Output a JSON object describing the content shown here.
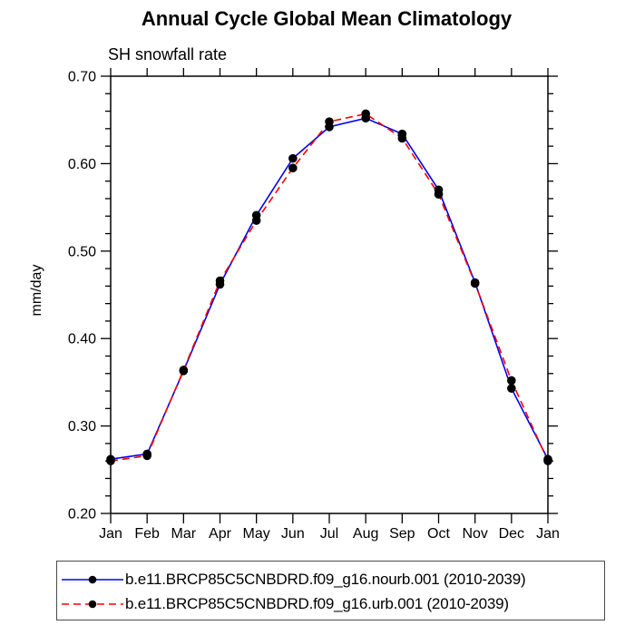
{
  "title": "Annual Cycle Global Mean Climatology",
  "subtitle": "SH snowfall rate",
  "ylabel": "mm/day",
  "axis_color": "#000000",
  "background_color": "#ffffff",
  "chart_data": {
    "type": "line",
    "title": "Annual Cycle Global Mean Climatology",
    "subtitle": "SH snowfall rate",
    "xlabel": "",
    "ylabel": "mm/day",
    "categories": [
      "Jan",
      "Feb",
      "Mar",
      "Apr",
      "May",
      "Jun",
      "Jul",
      "Aug",
      "Sep",
      "Oct",
      "Nov",
      "Dec",
      "Jan"
    ],
    "ylim": [
      0.2,
      0.7
    ],
    "ytick_major": 0.1,
    "ytick_minor": 0.02,
    "ytick_labels": [
      "0.20",
      "0.30",
      "0.40",
      "0.50",
      "0.60",
      "0.70"
    ],
    "grid": false,
    "legend_position": "bottom",
    "marker_color": "#000000",
    "series": [
      {
        "name": "b.e11.BRCP85C5CNBDRD.f09_g16.nourb.001 (2010-2039)",
        "color": "#0000ee",
        "line_style": "solid",
        "marker": "filled-circle",
        "values": [
          0.262,
          0.268,
          0.363,
          0.462,
          0.541,
          0.606,
          0.642,
          0.652,
          0.634,
          0.57,
          0.464,
          0.343,
          0.262
        ]
      },
      {
        "name": "b.e11.BRCP85C5CNBDRD.f09_g16.urb.001 (2010-2039)",
        "color": "#ff0000",
        "line_style": "dashed",
        "marker": "filled-circle",
        "values": [
          0.26,
          0.266,
          0.364,
          0.466,
          0.535,
          0.595,
          0.648,
          0.657,
          0.629,
          0.565,
          0.463,
          0.352,
          0.26
        ]
      }
    ]
  }
}
